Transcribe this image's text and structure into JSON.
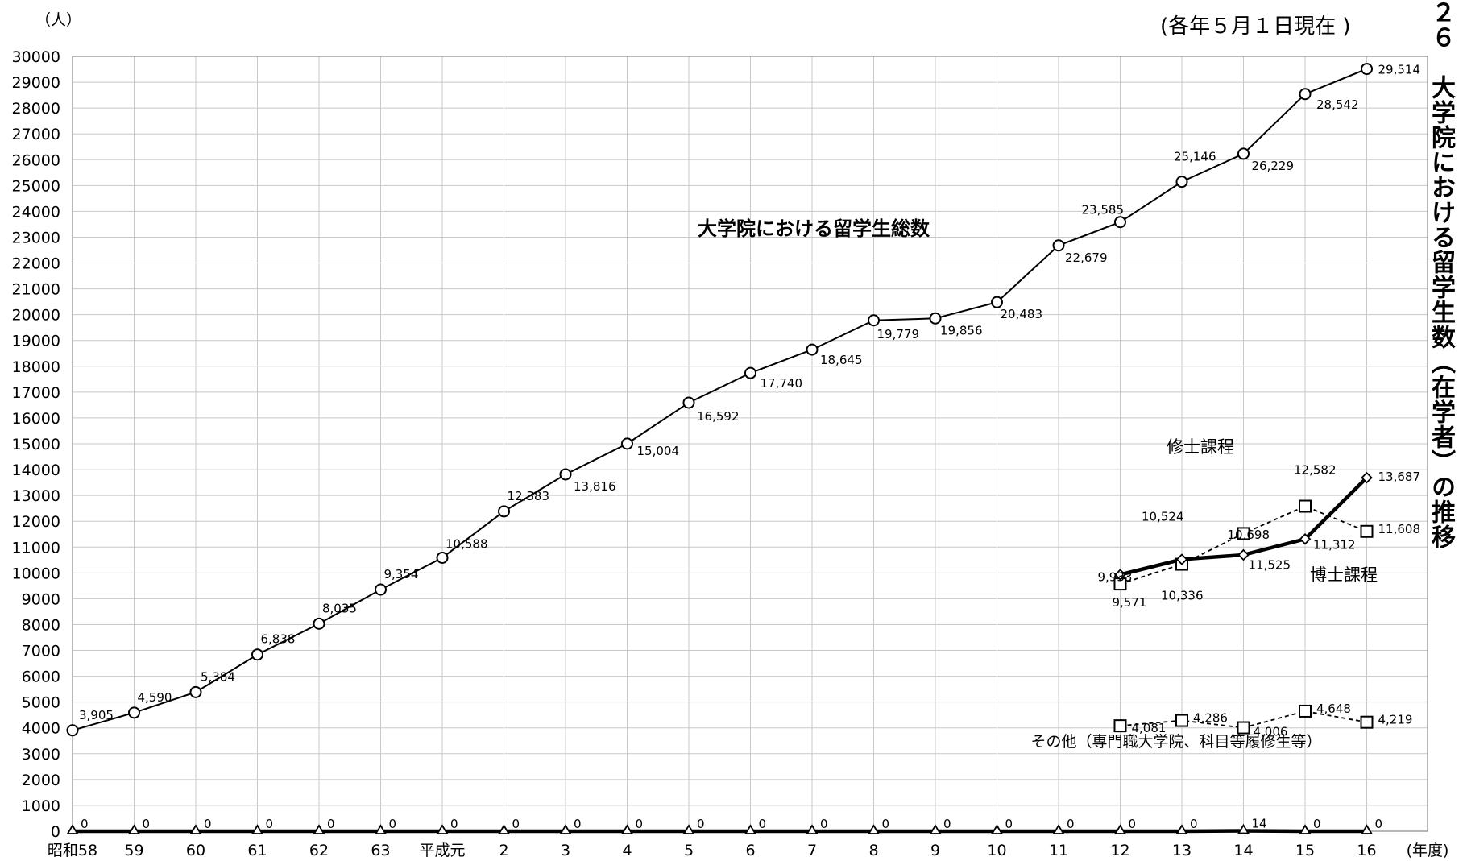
{
  "header": {
    "unit_label": "（人）",
    "as_of": "(各年５月１日現在 )",
    "side_title": "２６　大学院における留学生数（在学者）の推移"
  },
  "chart_data": {
    "type": "line",
    "title": "",
    "xlabel": "(年度)",
    "ylabel": "（人）",
    "ylim": [
      0,
      30000
    ],
    "yticks": [
      0,
      1000,
      2000,
      3000,
      4000,
      5000,
      6000,
      7000,
      8000,
      9000,
      10000,
      11000,
      12000,
      13000,
      14000,
      15000,
      16000,
      17000,
      18000,
      19000,
      20000,
      21000,
      22000,
      23000,
      24000,
      25000,
      26000,
      27000,
      28000,
      29000,
      30000
    ],
    "categories": [
      "昭和58",
      "59",
      "60",
      "61",
      "62",
      "63",
      "平成元",
      "2",
      "3",
      "4",
      "5",
      "6",
      "7",
      "8",
      "9",
      "10",
      "11",
      "12",
      "13",
      "14",
      "15",
      "16"
    ],
    "grid": true,
    "series": [
      {
        "name": "大学院における留学生総数",
        "marker": "circle",
        "style": "solid",
        "values": [
          3905,
          4590,
          5384,
          6838,
          8035,
          9354,
          10588,
          12383,
          13816,
          15004,
          16592,
          17740,
          18645,
          19779,
          19856,
          20483,
          22679,
          23585,
          25146,
          26229,
          28542,
          29514
        ],
        "labels": [
          "3,905",
          "4,590",
          "5,384",
          "6,838",
          "8,035",
          "9,354",
          "10,588",
          "12,383",
          "13,816",
          "15,004",
          "16,592",
          "17,740",
          "18,645",
          "19,779",
          "19,856",
          "20,483",
          "22,679",
          "23,585",
          "25,146",
          "26,229",
          "28,542",
          "29,514"
        ]
      },
      {
        "name": "修士課程",
        "marker": "square",
        "style": "dashed",
        "values": [
          null,
          null,
          null,
          null,
          null,
          null,
          null,
          null,
          null,
          null,
          null,
          null,
          null,
          null,
          null,
          null,
          null,
          9571,
          10336,
          11525,
          12582,
          11608
        ],
        "labels": [
          "",
          "",
          "",
          "",
          "",
          "",
          "",
          "",
          "",
          "",
          "",
          "",
          "",
          "",
          "",
          "",
          "",
          "9,571",
          "10,336",
          "11,525",
          "12,582",
          "11,608"
        ]
      },
      {
        "name": "博士課程",
        "marker": "diamond",
        "style": "bold",
        "values": [
          null,
          null,
          null,
          null,
          null,
          null,
          null,
          null,
          null,
          null,
          null,
          null,
          null,
          null,
          null,
          null,
          null,
          9933,
          10524,
          10698,
          11312,
          13687
        ],
        "labels": [
          "",
          "",
          "",
          "",
          "",
          "",
          "",
          "",
          "",
          "",
          "",
          "",
          "",
          "",
          "",
          "",
          "",
          "9,933",
          "10,524",
          "10,698",
          "11,312",
          "13,687"
        ]
      },
      {
        "name": "その他（専門職大学院、科目等履修生等）",
        "marker": "square",
        "style": "dashed",
        "values": [
          null,
          null,
          null,
          null,
          null,
          null,
          null,
          null,
          null,
          null,
          null,
          null,
          null,
          null,
          null,
          null,
          null,
          4081,
          4286,
          4006,
          4648,
          4219
        ],
        "labels": [
          "",
          "",
          "",
          "",
          "",
          "",
          "",
          "",
          "",
          "",
          "",
          "",
          "",
          "",
          "",
          "",
          "",
          "4,081",
          "4,286",
          "4,006",
          "4,648",
          "4,219"
        ]
      },
      {
        "name": "",
        "marker": "triangle",
        "style": "bold",
        "values": [
          0,
          0,
          0,
          0,
          0,
          0,
          0,
          0,
          0,
          0,
          0,
          0,
          0,
          0,
          0,
          0,
          0,
          0,
          0,
          14,
          0,
          0
        ],
        "labels": [
          "0",
          "0",
          "0",
          "0",
          "0",
          "0",
          "0",
          "0",
          "0",
          "0",
          "0",
          "0",
          "0",
          "0",
          "0",
          "0",
          "0",
          "0",
          "0",
          "14",
          "0",
          "0"
        ]
      }
    ]
  }
}
